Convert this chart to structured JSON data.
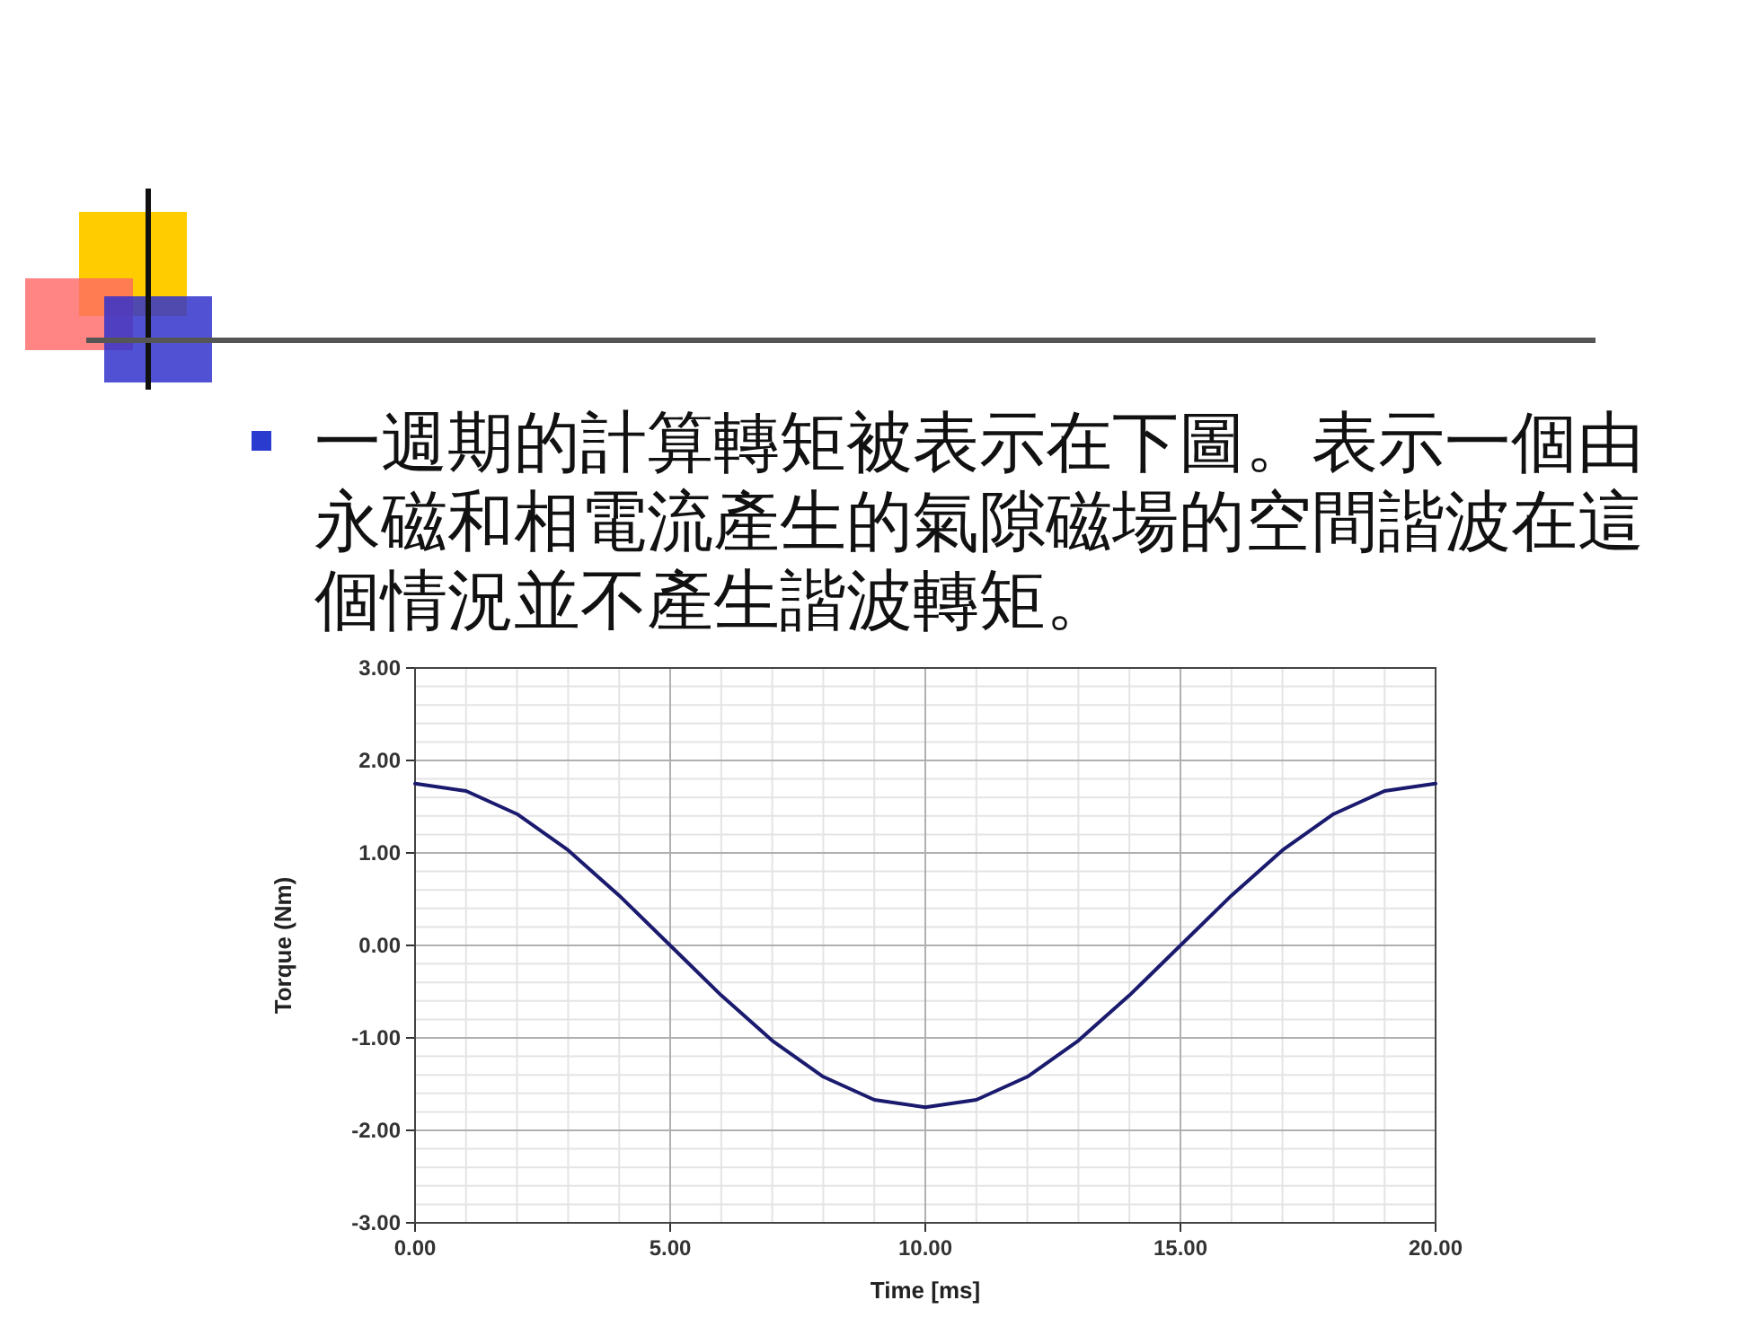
{
  "chart_data": {
    "type": "line",
    "title": "一週期的計算轉矩被表示在下圖。表示一個由永磁和相電流產生的氣隙磁場的空間諧波在這個情況並不產生諧波轉矩。",
    "xlabel": "Time [ms]",
    "ylabel": "Torque (Nm)",
    "x": [
      0,
      1,
      2,
      3,
      4,
      5,
      6,
      7,
      8,
      9,
      10,
      11,
      12,
      13,
      14,
      15,
      16,
      17,
      18,
      19,
      20
    ],
    "series": [
      {
        "color": "#1a1a6e",
        "values": [
          1.75,
          1.67,
          1.42,
          1.03,
          0.54,
          0,
          -0.54,
          -1.03,
          -1.42,
          -1.67,
          -1.75,
          -1.67,
          -1.42,
          -1.03,
          -0.54,
          0,
          0.54,
          1.03,
          1.42,
          1.67,
          1.75
        ]
      }
    ],
    "xlim": [
      0,
      20
    ],
    "ylim": [
      -3,
      3
    ],
    "xticks": [
      {
        "value": 0,
        "label": "0.00"
      },
      {
        "value": 5,
        "label": "5.00"
      },
      {
        "value": 10,
        "label": "10.00"
      },
      {
        "value": 15,
        "label": "15.00"
      },
      {
        "value": 20,
        "label": "20.00"
      }
    ],
    "yticks": [
      {
        "value": -3,
        "label": "-3.00"
      },
      {
        "value": -2,
        "label": "-2.00"
      },
      {
        "value": -1,
        "label": "-1.00"
      },
      {
        "value": 0,
        "label": "0.00"
      },
      {
        "value": 1,
        "label": "1.00"
      },
      {
        "value": 2,
        "label": "2.00"
      },
      {
        "value": 3,
        "label": "3.00"
      }
    ],
    "grid": true,
    "line_style": "solid",
    "marker": "none"
  }
}
